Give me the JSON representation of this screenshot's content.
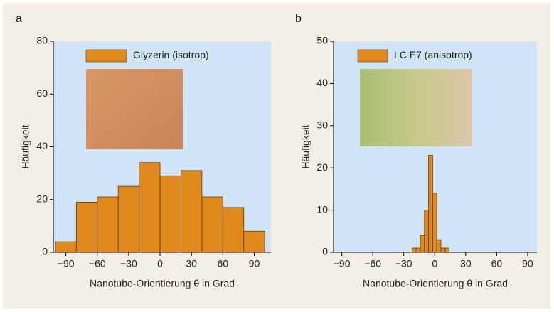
{
  "chart_data": [
    {
      "type": "histogram",
      "title": "a",
      "xlabel": "Nanotube-Orientierung θ in Grad",
      "ylabel": "Häufigkeit",
      "bins": [
        -100,
        -80,
        -60,
        -40,
        -20,
        0,
        20,
        40,
        60,
        80,
        100
      ],
      "series": [
        {
          "name": "Glyzerin (isotrop)",
          "color": "#e08a1e",
          "values": [
            4,
            19,
            21,
            25,
            34,
            29,
            31,
            21,
            17,
            8
          ]
        }
      ],
      "xlim": [
        -102,
        106
      ],
      "ylim": [
        0,
        80
      ],
      "xticks": [
        {
          "value": -90,
          "label": "−90"
        },
        {
          "value": -60,
          "label": "−60"
        },
        {
          "value": -30,
          "label": "−30"
        },
        0,
        30,
        60,
        90
      ],
      "yticks": [
        0,
        20,
        40,
        60,
        80
      ]
    },
    {
      "type": "histogram",
      "title": "b",
      "xlabel": "Nanotube-Orientierung θ in Grad",
      "ylabel": "Häufigkeit",
      "bins": [
        -22,
        -18,
        -14,
        -10,
        -6,
        -2,
        2,
        6,
        10,
        14,
        18
      ],
      "series": [
        {
          "name": "LC E7 (anisotrop)",
          "color": "#e08a1e",
          "values": [
            1,
            1,
            4,
            10,
            23,
            14,
            3,
            1,
            1,
            0
          ]
        }
      ],
      "xlim": [
        -98,
        99
      ],
      "ylim": [
        0,
        50
      ],
      "xticks": [
        {
          "value": -90,
          "label": "−90"
        },
        {
          "value": -60,
          "label": "−60"
        },
        {
          "value": -30,
          "label": "−30"
        },
        0,
        30,
        60,
        90
      ],
      "yticks": [
        0,
        10,
        20,
        30,
        40,
        50
      ]
    }
  ]
}
